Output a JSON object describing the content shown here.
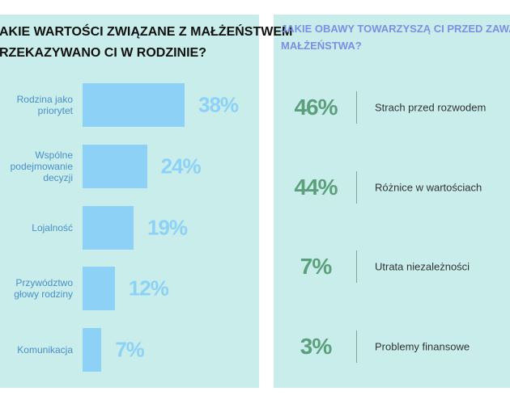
{
  "chart_data": [
    {
      "type": "bar",
      "title_lines": [
        "AKIE WARTOŚCI ZWIĄZANE Z MAŁŻEŃSTWEM",
        "RZEKAZYWANO CI W RODZINIE?"
      ],
      "categories": [
        "Rodzina jako\npriorytet",
        "Wspólne\npodejmowanie\ndecyzji",
        "Lojalność",
        "Przywództwo\ngłowy rodziny",
        "Komunikacja"
      ],
      "values": [
        38,
        24,
        19,
        12,
        7
      ],
      "value_labels": [
        "38%",
        "24%",
        "19%",
        "12%",
        "7%"
      ],
      "color": "#8dd2f6"
    },
    {
      "type": "stat-list",
      "title_lines": [
        "JAKIE OBAWY TOWARZYSZĄ CI PRZED ZAWARCIE",
        "MAŁŻEŃSTWA?"
      ],
      "categories": [
        "Strach przed rozwodem",
        "Różnice w wartościach",
        "Utrata niezależności",
        "Problemy finansowe"
      ],
      "values": [
        46,
        44,
        7,
        3
      ],
      "value_labels": [
        "46%",
        "44%",
        "7%",
        "3%"
      ],
      "color": "#5c9f7c"
    }
  ]
}
